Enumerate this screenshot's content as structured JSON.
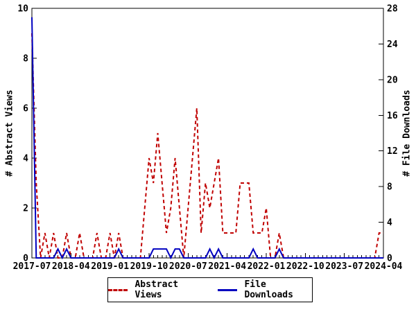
{
  "chart_data": {
    "type": "line",
    "title": "",
    "xlabel": "",
    "ylabel_left": "# Abstract Views",
    "ylabel_right": "# File Downloads",
    "grid": false,
    "legend_position": "bottom-center",
    "background_color": "#ffffff",
    "axis_color": "#000000",
    "yaxis_left": {
      "min": 0,
      "max": 10,
      "ticks": [
        0,
        2,
        4,
        6,
        8,
        10
      ]
    },
    "yaxis_right": {
      "min": 0,
      "max": 28,
      "ticks": [
        0,
        4,
        8,
        12,
        16,
        20,
        24,
        28
      ]
    },
    "xticks": {
      "labels": [
        "2017-07",
        "2018-04",
        "2019-01",
        "2019-10",
        "2020-07",
        "2021-04",
        "2022-01",
        "2022-10",
        "2023-07",
        "2024-04"
      ],
      "month_indices": [
        0,
        9,
        18,
        27,
        36,
        45,
        54,
        63,
        72,
        81
      ]
    },
    "x": [
      "2017-07",
      "2017-08",
      "2017-09",
      "2017-10",
      "2017-11",
      "2017-12",
      "2018-01",
      "2018-02",
      "2018-03",
      "2018-04",
      "2018-05",
      "2018-06",
      "2018-07",
      "2018-08",
      "2018-09",
      "2018-10",
      "2018-11",
      "2018-12",
      "2019-01",
      "2019-02",
      "2019-03",
      "2019-04",
      "2019-05",
      "2019-06",
      "2019-07",
      "2019-08",
      "2019-09",
      "2019-10",
      "2019-11",
      "2019-12",
      "2020-01",
      "2020-02",
      "2020-03",
      "2020-04",
      "2020-05",
      "2020-06",
      "2020-07",
      "2020-08",
      "2020-09",
      "2020-10",
      "2020-11",
      "2020-12",
      "2021-01",
      "2021-02",
      "2021-03",
      "2021-04",
      "2021-05",
      "2021-06",
      "2021-07",
      "2021-08",
      "2021-09",
      "2021-10",
      "2021-11",
      "2021-12",
      "2022-01",
      "2022-02",
      "2022-03",
      "2022-04",
      "2022-05",
      "2022-06",
      "2022-07",
      "2022-08",
      "2022-09",
      "2022-10",
      "2022-11",
      "2022-12",
      "2023-01",
      "2023-02",
      "2023-03",
      "2023-04",
      "2023-05",
      "2023-06",
      "2023-07",
      "2023-08",
      "2023-09",
      "2023-10",
      "2023-11",
      "2023-12",
      "2024-01",
      "2024-02",
      "2024-03",
      "2024-04"
    ],
    "series": [
      {
        "name": "Abstract Views",
        "axis": "left",
        "color": "#c00000",
        "style": "dashed",
        "values": [
          9,
          3,
          0,
          1,
          0,
          1,
          0,
          0,
          1,
          0,
          0,
          1,
          0,
          0,
          0,
          1,
          0,
          0,
          1,
          0,
          1,
          0,
          0,
          0,
          0,
          0,
          2,
          4,
          3,
          5,
          3,
          1,
          2,
          4,
          2,
          0,
          2,
          4,
          6,
          1,
          3,
          2,
          3,
          4,
          1,
          1,
          1,
          1,
          3,
          3,
          3,
          1,
          1,
          1,
          2,
          0,
          0,
          1,
          0,
          0,
          0,
          0,
          0,
          0,
          0,
          0,
          0,
          0,
          0,
          0,
          0,
          0,
          0,
          0,
          0,
          0,
          0,
          0,
          0,
          0,
          1,
          1
        ]
      },
      {
        "name": "File Downloads",
        "axis": "right",
        "color": "#0000c0",
        "style": "solid",
        "values": [
          27,
          0,
          0,
          0,
          0,
          0,
          1,
          0,
          1,
          0,
          0,
          0,
          0,
          0,
          0,
          0,
          0,
          0,
          0,
          0,
          1,
          0,
          0,
          0,
          0,
          0,
          0,
          0,
          1,
          1,
          1,
          1,
          0,
          1,
          1,
          0,
          0,
          0,
          0,
          0,
          0,
          1,
          0,
          1,
          0,
          0,
          0,
          0,
          0,
          0,
          0,
          1,
          0,
          0,
          0,
          0,
          0,
          1,
          0,
          0,
          0,
          0,
          0,
          0,
          0,
          0,
          0,
          0,
          0,
          0,
          0,
          0,
          0,
          0,
          0,
          0,
          0,
          0,
          0,
          0,
          0,
          0
        ]
      }
    ]
  },
  "legend": {
    "abstract_views_label": "Abstract Views",
    "file_downloads_label": "File Downloads"
  }
}
